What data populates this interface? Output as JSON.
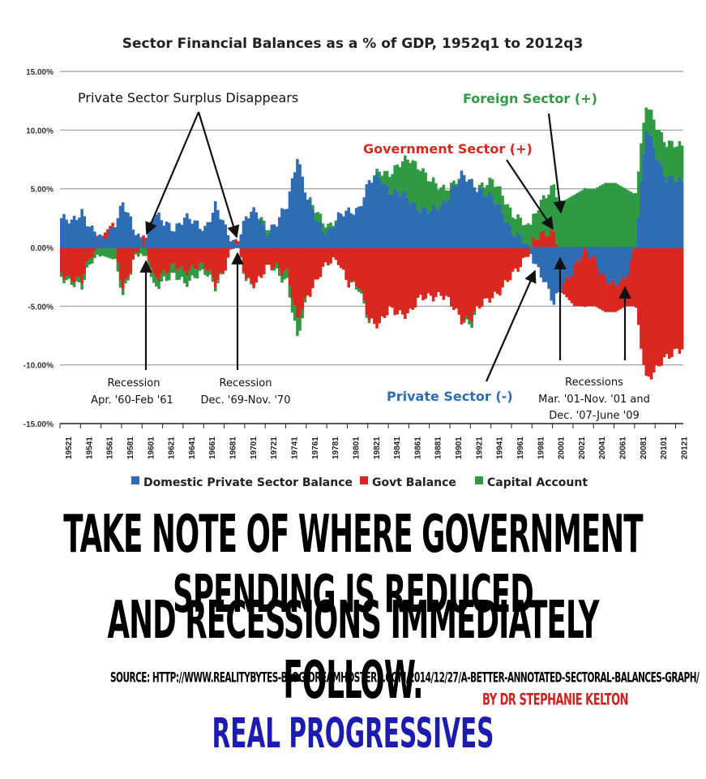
{
  "chart_data": {
    "type": "bar",
    "stacked": true,
    "title": "Sector Financial Balances as a % of GDP, 1952q1 to 2012q3",
    "ylim": [
      -15,
      15
    ],
    "y_ticks": [
      "15.00%",
      "10.00%",
      "5.00%",
      "0.00%",
      "-5.00%",
      "-10.00%",
      "-15.00%"
    ],
    "y_tick_values": [
      15,
      10,
      5,
      0,
      -5,
      -10,
      -15
    ],
    "grid": true,
    "x_tick_labels": [
      "19521",
      "19541",
      "19561",
      "19581",
      "19601",
      "19621",
      "19641",
      "19661",
      "19681",
      "19701",
      "19721",
      "19741",
      "19761",
      "19781",
      "19801",
      "19821",
      "19841",
      "19861",
      "19881",
      "19901",
      "19921",
      "19941",
      "19961",
      "19981",
      "20001",
      "20021",
      "20041",
      "20061",
      "20081",
      "20101",
      "20121"
    ],
    "x_start": 1952.0,
    "x_end": 2012.75,
    "legend_position": "bottom",
    "series": [
      {
        "name": "Domestic Private Sector Balance",
        "color": "#2e6db4",
        "years": [
          1952,
          1953,
          1954,
          1955,
          1956,
          1957,
          1958,
          1959,
          1960,
          1961,
          1962,
          1963,
          1964,
          1965,
          1966,
          1967,
          1968,
          1969,
          1970,
          1971,
          1972,
          1973,
          1974,
          1975,
          1976,
          1977,
          1978,
          1979,
          1980,
          1981,
          1982,
          1983,
          1984,
          1985,
          1986,
          1987,
          1988,
          1989,
          1990,
          1991,
          1992,
          1993,
          1994,
          1995,
          1996,
          1997,
          1998,
          1999,
          2000,
          2001,
          2002,
          2003,
          2004,
          2005,
          2006,
          2007,
          2008,
          2009,
          2010,
          2011,
          2012
        ],
        "values": [
          2.5,
          2.0,
          3.2,
          1.5,
          0.5,
          1.8,
          3.8,
          1.5,
          0.5,
          2.8,
          2.0,
          1.8,
          2.5,
          2.0,
          1.8,
          3.5,
          1.5,
          0.3,
          2.5,
          3.0,
          1.5,
          2.0,
          3.5,
          8.0,
          4.0,
          2.0,
          1.5,
          2.5,
          3.0,
          3.5,
          5.5,
          6.0,
          5.0,
          4.5,
          4.0,
          3.5,
          3.0,
          3.5,
          5.0,
          6.0,
          5.5,
          5.0,
          4.0,
          3.0,
          1.5,
          0.5,
          -1.0,
          -2.5,
          -5.0,
          -3.0,
          -1.5,
          -0.5,
          -1.0,
          -2.5,
          -3.5,
          -2.5,
          0.5,
          10.0,
          8.0,
          6.0,
          5.5
        ]
      },
      {
        "name": "Govt Balance",
        "color": "#d8281f",
        "years": [
          1952,
          1953,
          1954,
          1955,
          1956,
          1957,
          1958,
          1959,
          1960,
          1961,
          1962,
          1963,
          1964,
          1965,
          1966,
          1967,
          1968,
          1969,
          1970,
          1971,
          1972,
          1973,
          1974,
          1975,
          1976,
          1977,
          1978,
          1979,
          1980,
          1981,
          1982,
          1983,
          1984,
          1985,
          1986,
          1987,
          1988,
          1989,
          1990,
          1991,
          1992,
          1993,
          1994,
          1995,
          1996,
          1997,
          1998,
          1999,
          2000,
          2001,
          2002,
          2003,
          2004,
          2005,
          2006,
          2007,
          2008,
          2009,
          2010,
          2011,
          2012
        ],
        "values": [
          -2.2,
          -2.5,
          -3.0,
          -0.5,
          0.5,
          0.3,
          -3.5,
          -1.0,
          0.5,
          -2.5,
          -2.0,
          -1.8,
          -2.0,
          -1.5,
          -1.8,
          -3.0,
          -1.5,
          0.4,
          -2.5,
          -3.0,
          -2.0,
          -1.5,
          -2.0,
          -6.5,
          -4.0,
          -2.5,
          -1.5,
          -1.0,
          -3.0,
          -3.5,
          -6.0,
          -6.5,
          -5.5,
          -5.5,
          -5.5,
          -4.5,
          -4.0,
          -4.0,
          -5.0,
          -6.0,
          -6.0,
          -5.0,
          -4.0,
          -3.5,
          -2.5,
          -1.0,
          0.5,
          1.0,
          1.5,
          -1.0,
          -3.5,
          -4.5,
          -4.0,
          -3.0,
          -2.0,
          -2.5,
          -5.5,
          -11.0,
          -10.5,
          -9.5,
          -8.5
        ]
      },
      {
        "name": "Capital Account",
        "color": "#2f9a42",
        "years": [
          1952,
          1953,
          1954,
          1955,
          1956,
          1957,
          1958,
          1959,
          1960,
          1961,
          1962,
          1963,
          1964,
          1965,
          1966,
          1967,
          1968,
          1969,
          1970,
          1971,
          1972,
          1973,
          1974,
          1975,
          1976,
          1977,
          1978,
          1979,
          1980,
          1981,
          1982,
          1983,
          1984,
          1985,
          1986,
          1987,
          1988,
          1989,
          1990,
          1991,
          1992,
          1993,
          1994,
          1995,
          1996,
          1997,
          1998,
          1999,
          2000,
          2001,
          2002,
          2003,
          2004,
          2005,
          2006,
          2007,
          2008,
          2009,
          2010,
          2011,
          2012
        ],
        "values": [
          -0.3,
          -0.3,
          -0.5,
          -0.5,
          -0.7,
          -1.0,
          -0.5,
          0.0,
          -0.7,
          -0.8,
          -0.6,
          -0.8,
          -1.0,
          -0.8,
          -0.5,
          -0.3,
          0.0,
          0.0,
          -0.2,
          0.0,
          0.5,
          -0.5,
          -0.8,
          -1.5,
          0.0,
          0.8,
          0.5,
          0.0,
          0.0,
          -0.3,
          -0.2,
          0.5,
          1.5,
          2.5,
          3.5,
          3.5,
          2.5,
          1.5,
          0.5,
          0.0,
          -0.5,
          0.5,
          1.5,
          1.5,
          1.5,
          1.5,
          2.0,
          3.0,
          4.0,
          4.0,
          4.5,
          5.0,
          5.0,
          5.5,
          5.5,
          5.0,
          4.5,
          2.0,
          2.5,
          3.0,
          3.0
        ]
      }
    ],
    "annotations": [
      {
        "text": "Private Sector Surplus Disappears",
        "color": "#111111"
      },
      {
        "text": "Foreign Sector (+)",
        "color": "#2f9a42"
      },
      {
        "text": "Government Sector (+)",
        "color": "#d8281f"
      },
      {
        "text": "Private Sector (-)",
        "color": "#2e6db4"
      },
      {
        "text": "Recession",
        "sub": "Apr. '60-Feb '61",
        "color": "#111111"
      },
      {
        "text": "Recession",
        "sub": "Dec. '69-Nov. '70",
        "color": "#111111"
      },
      {
        "text": "Recessions",
        "sub": "Mar. '01-Nov. '01 and",
        "sub2": "Dec. '07-June '09",
        "color": "#111111"
      }
    ]
  },
  "legend": [
    {
      "label": "Domestic Private Sector Balance",
      "color": "#2e6db4"
    },
    {
      "label": "Govt Balance",
      "color": "#d8281f"
    },
    {
      "label": "Capital Account",
      "color": "#2f9a42"
    }
  ],
  "caption": {
    "line1": "Take note of where government spending is reduced",
    "line2": "and Recessions immediately follow.",
    "source": "Source: http://www.realitybytes-blog.dreamhosters.com/2014/12/27/a-better-annotated-sectoral-balances-graph/",
    "byline": "by Dr Stephanie Kelton",
    "brand": "Real Progressives"
  }
}
